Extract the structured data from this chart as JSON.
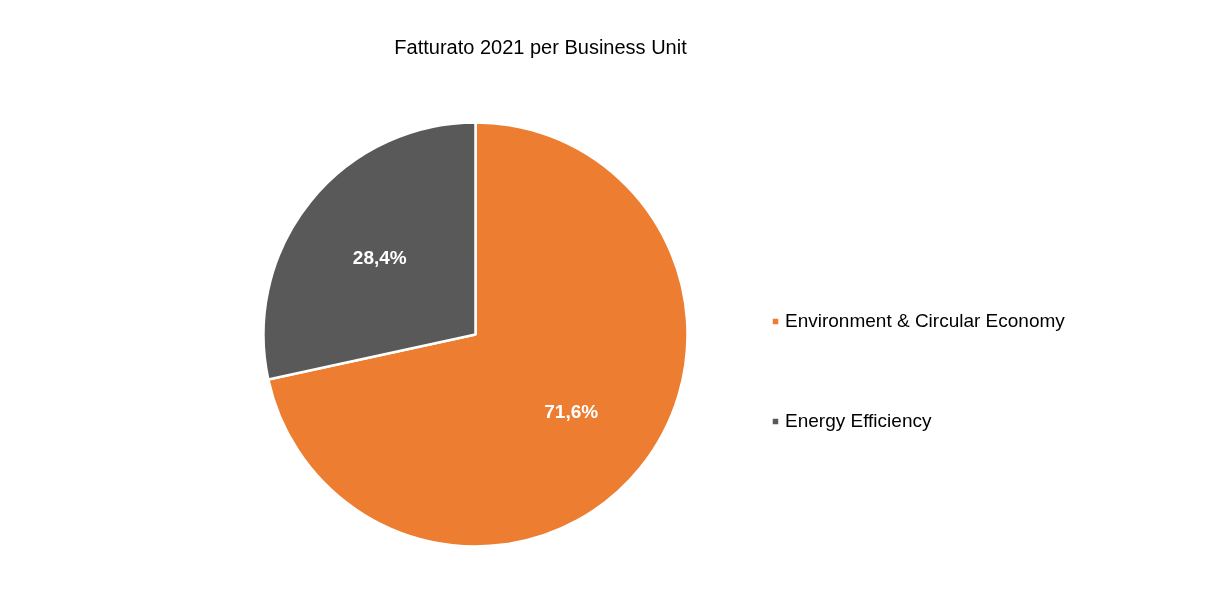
{
  "chart_data": {
    "type": "pie",
    "title": "Fatturato 2021 per Business Unit",
    "categories": [
      "Environment & Circular Economy",
      "Energy Efficiency"
    ],
    "values": [
      71.6,
      28.4
    ],
    "colors": [
      "#ed7d31",
      "#595959"
    ],
    "value_labels": [
      "71,6%",
      "28,4%"
    ],
    "legend": "right"
  }
}
